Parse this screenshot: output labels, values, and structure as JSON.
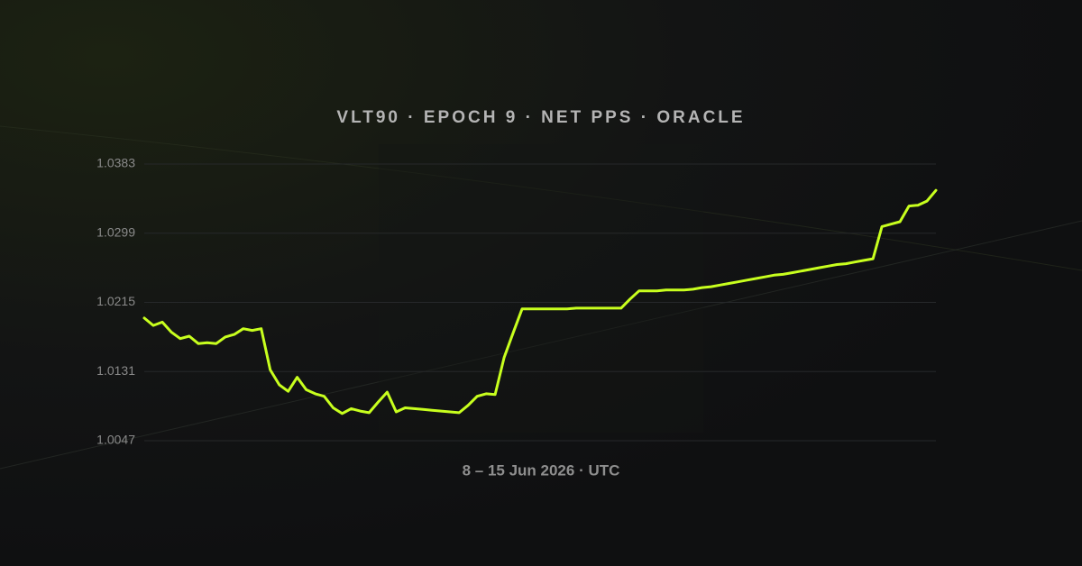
{
  "chart_data": {
    "type": "line",
    "title": "VLT90 · EPOCH 9 · NET PPS · ORACLE",
    "x_label": "8 – 15 Jun 2026 · UTC",
    "color": "#c8ff1e",
    "grid": true,
    "ylim": [
      1.0047,
      1.0383
    ],
    "yticks": [
      1.0383,
      1.0299,
      1.0215,
      1.0131,
      1.0047
    ],
    "values": [
      1.0196,
      1.0187,
      1.0191,
      1.0179,
      1.0171,
      1.0174,
      1.0165,
      1.0166,
      1.0165,
      1.0173,
      1.0176,
      1.0183,
      1.0181,
      1.0183,
      1.0133,
      1.0115,
      1.0107,
      1.0124,
      1.0109,
      1.0104,
      1.0101,
      1.0087,
      1.008,
      1.0086,
      1.0083,
      1.0081,
      1.0094,
      1.0106,
      1.0082,
      1.0087,
      1.0086,
      1.0085,
      1.0084,
      1.0083,
      1.0082,
      1.0081,
      1.009,
      1.0101,
      1.0104,
      1.0103,
      1.0148,
      1.0178,
      1.0207,
      1.0207,
      1.0207,
      1.0207,
      1.0207,
      1.0207,
      1.0208,
      1.0208,
      1.0208,
      1.0208,
      1.0208,
      1.0208,
      1.0219,
      1.0229,
      1.0229,
      1.0229,
      1.023,
      1.023,
      1.023,
      1.0231,
      1.0233,
      1.0234,
      1.0236,
      1.0238,
      1.024,
      1.0242,
      1.0244,
      1.0246,
      1.0248,
      1.0249,
      1.0251,
      1.0253,
      1.0255,
      1.0257,
      1.0259,
      1.0261,
      1.0262,
      1.0264,
      1.0266,
      1.0268,
      1.0307,
      1.031,
      1.0313,
      1.0332,
      1.0333,
      1.0338,
      1.0351
    ]
  }
}
